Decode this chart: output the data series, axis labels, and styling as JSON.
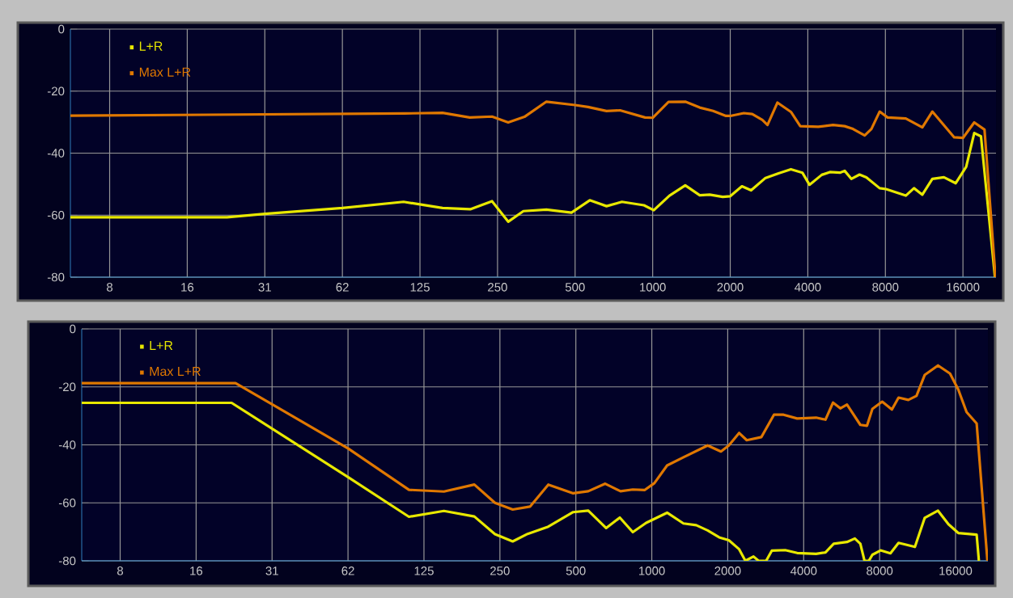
{
  "chart_data": [
    {
      "type": "line",
      "log": "x",
      "grid": true,
      "legend": "top left",
      "xlim": [
        5.5,
        21500
      ],
      "ylim": [
        -80,
        0
      ],
      "xticks": [
        {
          "value": 7.8125,
          "label": "8"
        },
        {
          "value": 15.625,
          "label": "16"
        },
        {
          "value": 31.25,
          "label": "31"
        },
        {
          "value": 62.5,
          "label": "62"
        },
        125,
        250,
        500,
        1000,
        2000,
        4000,
        8000,
        16000
      ],
      "yticks": [
        0,
        -20,
        -40,
        -60,
        -80
      ],
      "series": [
        {
          "name": "L+R",
          "color": "#e8e800",
          "x": [
            5.5,
            22.3,
            31.25,
            62.5,
            108,
            153,
            196,
            238,
            275,
            315,
            387,
            484,
            570,
            662,
            760,
            925,
            1010,
            1162,
            1338,
            1523,
            1665,
            1870,
            2000,
            2220,
            2410,
            2730,
            3080,
            3440,
            3810,
            4060,
            4530,
            4870,
            5330,
            5560,
            5900,
            6350,
            6750,
            7600,
            8050,
            9600,
            10330,
            11130,
            12170,
            13500,
            15000,
            16470,
            17700,
            18800,
            21300
          ],
          "values": [
            -60.7,
            -60.7,
            -59.6,
            -57.7,
            -55.7,
            -57.7,
            -58.1,
            -55.5,
            -62.1,
            -58.7,
            -58.2,
            -59.2,
            -55.2,
            -57.1,
            -55.7,
            -56.8,
            -58.4,
            -53.7,
            -50.4,
            -53.6,
            -53.4,
            -54.1,
            -53.9,
            -50.7,
            -52.0,
            -48.1,
            -46.5,
            -45.2,
            -46.3,
            -50.2,
            -47.0,
            -46.1,
            -46.3,
            -45.7,
            -48.3,
            -46.9,
            -47.8,
            -51.3,
            -51.6,
            -53.7,
            -51.3,
            -53.4,
            -48.3,
            -47.8,
            -49.7,
            -44.4,
            -33.5,
            -34.6,
            -80
          ]
        },
        {
          "name": "Max L+R",
          "color": "#e07800",
          "x": [
            5.5,
            109,
            153,
            195,
            238,
            275,
            318,
            387,
            500,
            561,
            662,
            747,
            934,
            1000,
            1152,
            1338,
            1523,
            1716,
            1925,
            2000,
            2258,
            2434,
            2664,
            2790,
            3050,
            3440,
            3740,
            4390,
            5010,
            5560,
            5990,
            6650,
            7060,
            7600,
            8160,
            9600,
            11130,
            12170,
            14800,
            16000,
            17700,
            19400,
            21400
          ],
          "values": [
            -27.9,
            -27.2,
            -27.0,
            -28.5,
            -28.2,
            -30.1,
            -28.3,
            -23.4,
            -24.5,
            -25.1,
            -26.4,
            -26.2,
            -28.5,
            -28.6,
            -23.5,
            -23.4,
            -25.3,
            -26.4,
            -28.0,
            -28.0,
            -27.1,
            -27.4,
            -29.3,
            -30.9,
            -23.7,
            -26.7,
            -31.3,
            -31.5,
            -30.9,
            -31.3,
            -32.2,
            -34.3,
            -32.2,
            -26.6,
            -28.5,
            -28.8,
            -31.7,
            -26.6,
            -34.9,
            -35.1,
            -30.1,
            -32.4,
            -80
          ]
        }
      ]
    },
    {
      "type": "line",
      "log": "x",
      "grid": true,
      "legend": "top left",
      "xlim": [
        5.5,
        21500
      ],
      "ylim": [
        -80,
        0
      ],
      "xticks": [
        {
          "value": 7.8125,
          "label": "8"
        },
        {
          "value": 15.625,
          "label": "16"
        },
        {
          "value": 31.25,
          "label": "31"
        },
        {
          "value": 62.5,
          "label": "62"
        },
        125,
        250,
        500,
        1000,
        2000,
        4000,
        8000,
        16000
      ],
      "yticks": [
        0,
        -20,
        -40,
        -60,
        -80
      ],
      "series": [
        {
          "name": "L+R",
          "color": "#e8e800",
          "x": [
            5.5,
            21.6,
            62.5,
            109,
            150,
            198,
            239,
            281,
            322,
            389,
            488,
            560,
            659,
            747,
            841,
            950,
            1150,
            1335,
            1500,
            1665,
            1850,
            2020,
            2220,
            2350,
            2530,
            2650,
            2840,
            2990,
            3380,
            3770,
            4480,
            4880,
            5260,
            5940,
            6380,
            6710,
            6970,
            7250,
            7490,
            8070,
            8830,
            9510,
            11040,
            12070,
            13630,
            15000,
            16400,
            19400,
            19800
          ],
          "values": [
            -25.5,
            -25.5,
            -51.1,
            -64.8,
            -62.8,
            -64.7,
            -70.8,
            -73.3,
            -70.7,
            -68.2,
            -63.2,
            -62.7,
            -68.7,
            -65.1,
            -70.1,
            -66.9,
            -63.4,
            -67.1,
            -67.7,
            -69.5,
            -71.9,
            -72.9,
            -76.0,
            -80,
            -78.5,
            -80,
            -80,
            -76.5,
            -76.3,
            -77.3,
            -77.6,
            -77.1,
            -74.1,
            -73.5,
            -72.3,
            -74.1,
            -80,
            -80,
            -77.9,
            -76.4,
            -77.4,
            -73.8,
            -75.2,
            -65.2,
            -62.7,
            -67.4,
            -70.4,
            -71.0,
            -80
          ]
        },
        {
          "name": "Max L+R",
          "color": "#e07800",
          "x": [
            5.5,
            22.4,
            62.5,
            109,
            150,
            198,
            239,
            281,
            329,
            389,
            488,
            560,
            654,
            752,
            841,
            936,
            1024,
            1150,
            1335,
            1665,
            1880,
            2020,
            2220,
            2380,
            2720,
            3050,
            3330,
            3770,
            4480,
            4880,
            5230,
            5590,
            5940,
            6710,
            7130,
            7490,
            8190,
            8950,
            9510,
            10400,
            11200,
            12070,
            13630,
            15210,
            16400,
            17700,
            19400,
            21400
          ],
          "values": [
            -18.7,
            -18.7,
            -41.2,
            -55.5,
            -56.1,
            -53.7,
            -60.0,
            -62.3,
            -61.3,
            -53.7,
            -56.7,
            -56.0,
            -53.4,
            -56.0,
            -55.4,
            -55.6,
            -53.2,
            -47.1,
            -44.3,
            -40.2,
            -42.3,
            -40.2,
            -35.9,
            -38.4,
            -37.3,
            -29.6,
            -29.6,
            -30.9,
            -30.6,
            -31.3,
            -25.4,
            -27.4,
            -26.1,
            -33.1,
            -33.4,
            -27.6,
            -25.1,
            -27.8,
            -23.7,
            -24.5,
            -23.1,
            -15.9,
            -12.6,
            -15.4,
            -20.9,
            -28.7,
            -32.6,
            -80
          ]
        }
      ]
    }
  ]
}
